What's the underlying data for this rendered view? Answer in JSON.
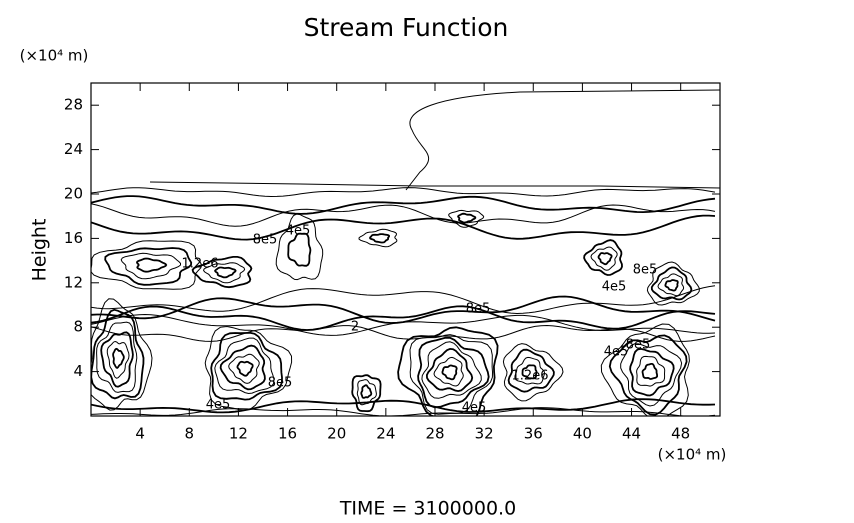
{
  "chart_data": {
    "type": "contour",
    "title": "Stream Function",
    "y_label": "Height",
    "y_unit": "(×10⁴ m)",
    "x_unit": "(×10⁴ m)",
    "footer": "TIME = 3100000.0",
    "xlim": [
      0,
      51.2
    ],
    "ylim": [
      0,
      30
    ],
    "xticks": [
      4,
      8,
      12,
      16,
      20,
      24,
      28,
      32,
      36,
      40,
      44,
      48
    ],
    "yticks": [
      4,
      8,
      12,
      16,
      20,
      24,
      28
    ],
    "contour_labels": [
      "4e5",
      "8e5",
      "1.2e6",
      "8e5",
      "4e5",
      "8e5",
      "4e5",
      "1.2e6",
      "4e5",
      "8e5",
      "4e5",
      "8e5",
      "2"
    ],
    "color": "#000000"
  }
}
